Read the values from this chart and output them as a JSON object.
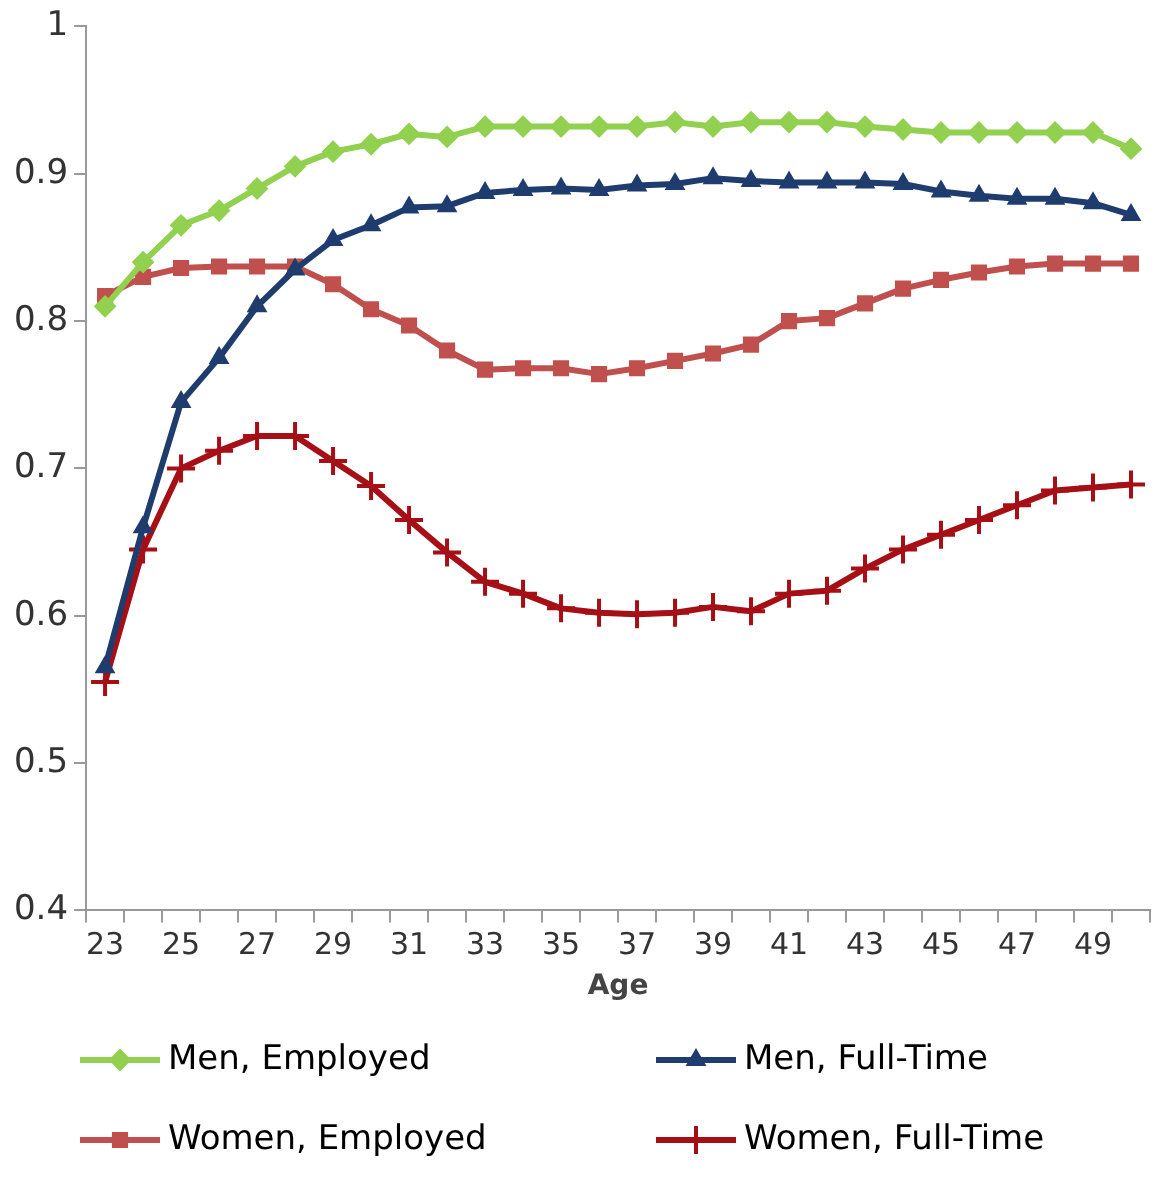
{
  "chart_data": {
    "type": "line",
    "xlabel": "Age",
    "categories": [
      "23",
      null,
      "25",
      null,
      "27",
      null,
      "29",
      null,
      "31",
      null,
      "33",
      null,
      "35",
      null,
      "37",
      null,
      "39",
      null,
      "41",
      null,
      "43",
      null,
      "45",
      null,
      "47",
      null,
      "49",
      null
    ],
    "ylim": [
      0.4,
      1
    ],
    "yticks": [
      0.4,
      0.5,
      0.6,
      0.7,
      0.8,
      0.9,
      1
    ],
    "grid": false,
    "legend": "bottom",
    "series": [
      {
        "name": "Men, Employed",
        "color": "#92d050",
        "marker": "diamond",
        "values": [
          0.81,
          0.84,
          0.865,
          0.875,
          0.89,
          0.905,
          0.915,
          0.92,
          0.927,
          0.925,
          0.932,
          0.932,
          0.932,
          0.932,
          0.932,
          0.935,
          0.932,
          0.935,
          0.935,
          0.935,
          0.932,
          0.93,
          0.928,
          0.928,
          0.928,
          0.928,
          0.928,
          0.917
        ]
      },
      {
        "name": "Men, Full-Time",
        "color": "#1f3c6e",
        "marker": "triangle",
        "values": [
          0.565,
          0.66,
          0.745,
          0.775,
          0.81,
          0.835,
          0.855,
          0.865,
          0.877,
          0.878,
          0.887,
          0.889,
          0.89,
          0.889,
          0.892,
          0.893,
          0.897,
          0.895,
          0.894,
          0.894,
          0.894,
          0.893,
          0.888,
          0.885,
          0.883,
          0.883,
          0.88,
          0.872
        ]
      },
      {
        "name": "Women, Employed",
        "color": "#c0504d",
        "marker": "square",
        "values": [
          0.817,
          0.83,
          0.836,
          0.837,
          0.837,
          0.837,
          0.825,
          0.808,
          0.797,
          0.78,
          0.767,
          0.768,
          0.768,
          0.764,
          0.768,
          0.773,
          0.778,
          0.784,
          0.8,
          0.802,
          0.812,
          0.822,
          0.828,
          0.833,
          0.837,
          0.839,
          0.839,
          0.839
        ]
      },
      {
        "name": "Women, Full-Time",
        "color": "#a50f15",
        "marker": "cross",
        "values": [
          0.555,
          0.645,
          0.7,
          0.712,
          0.722,
          0.722,
          0.705,
          0.688,
          0.665,
          0.643,
          0.623,
          0.615,
          0.605,
          0.602,
          0.601,
          0.602,
          0.606,
          0.603,
          0.615,
          0.617,
          0.632,
          0.645,
          0.655,
          0.665,
          0.675,
          0.685,
          0.687,
          0.689
        ]
      }
    ]
  }
}
